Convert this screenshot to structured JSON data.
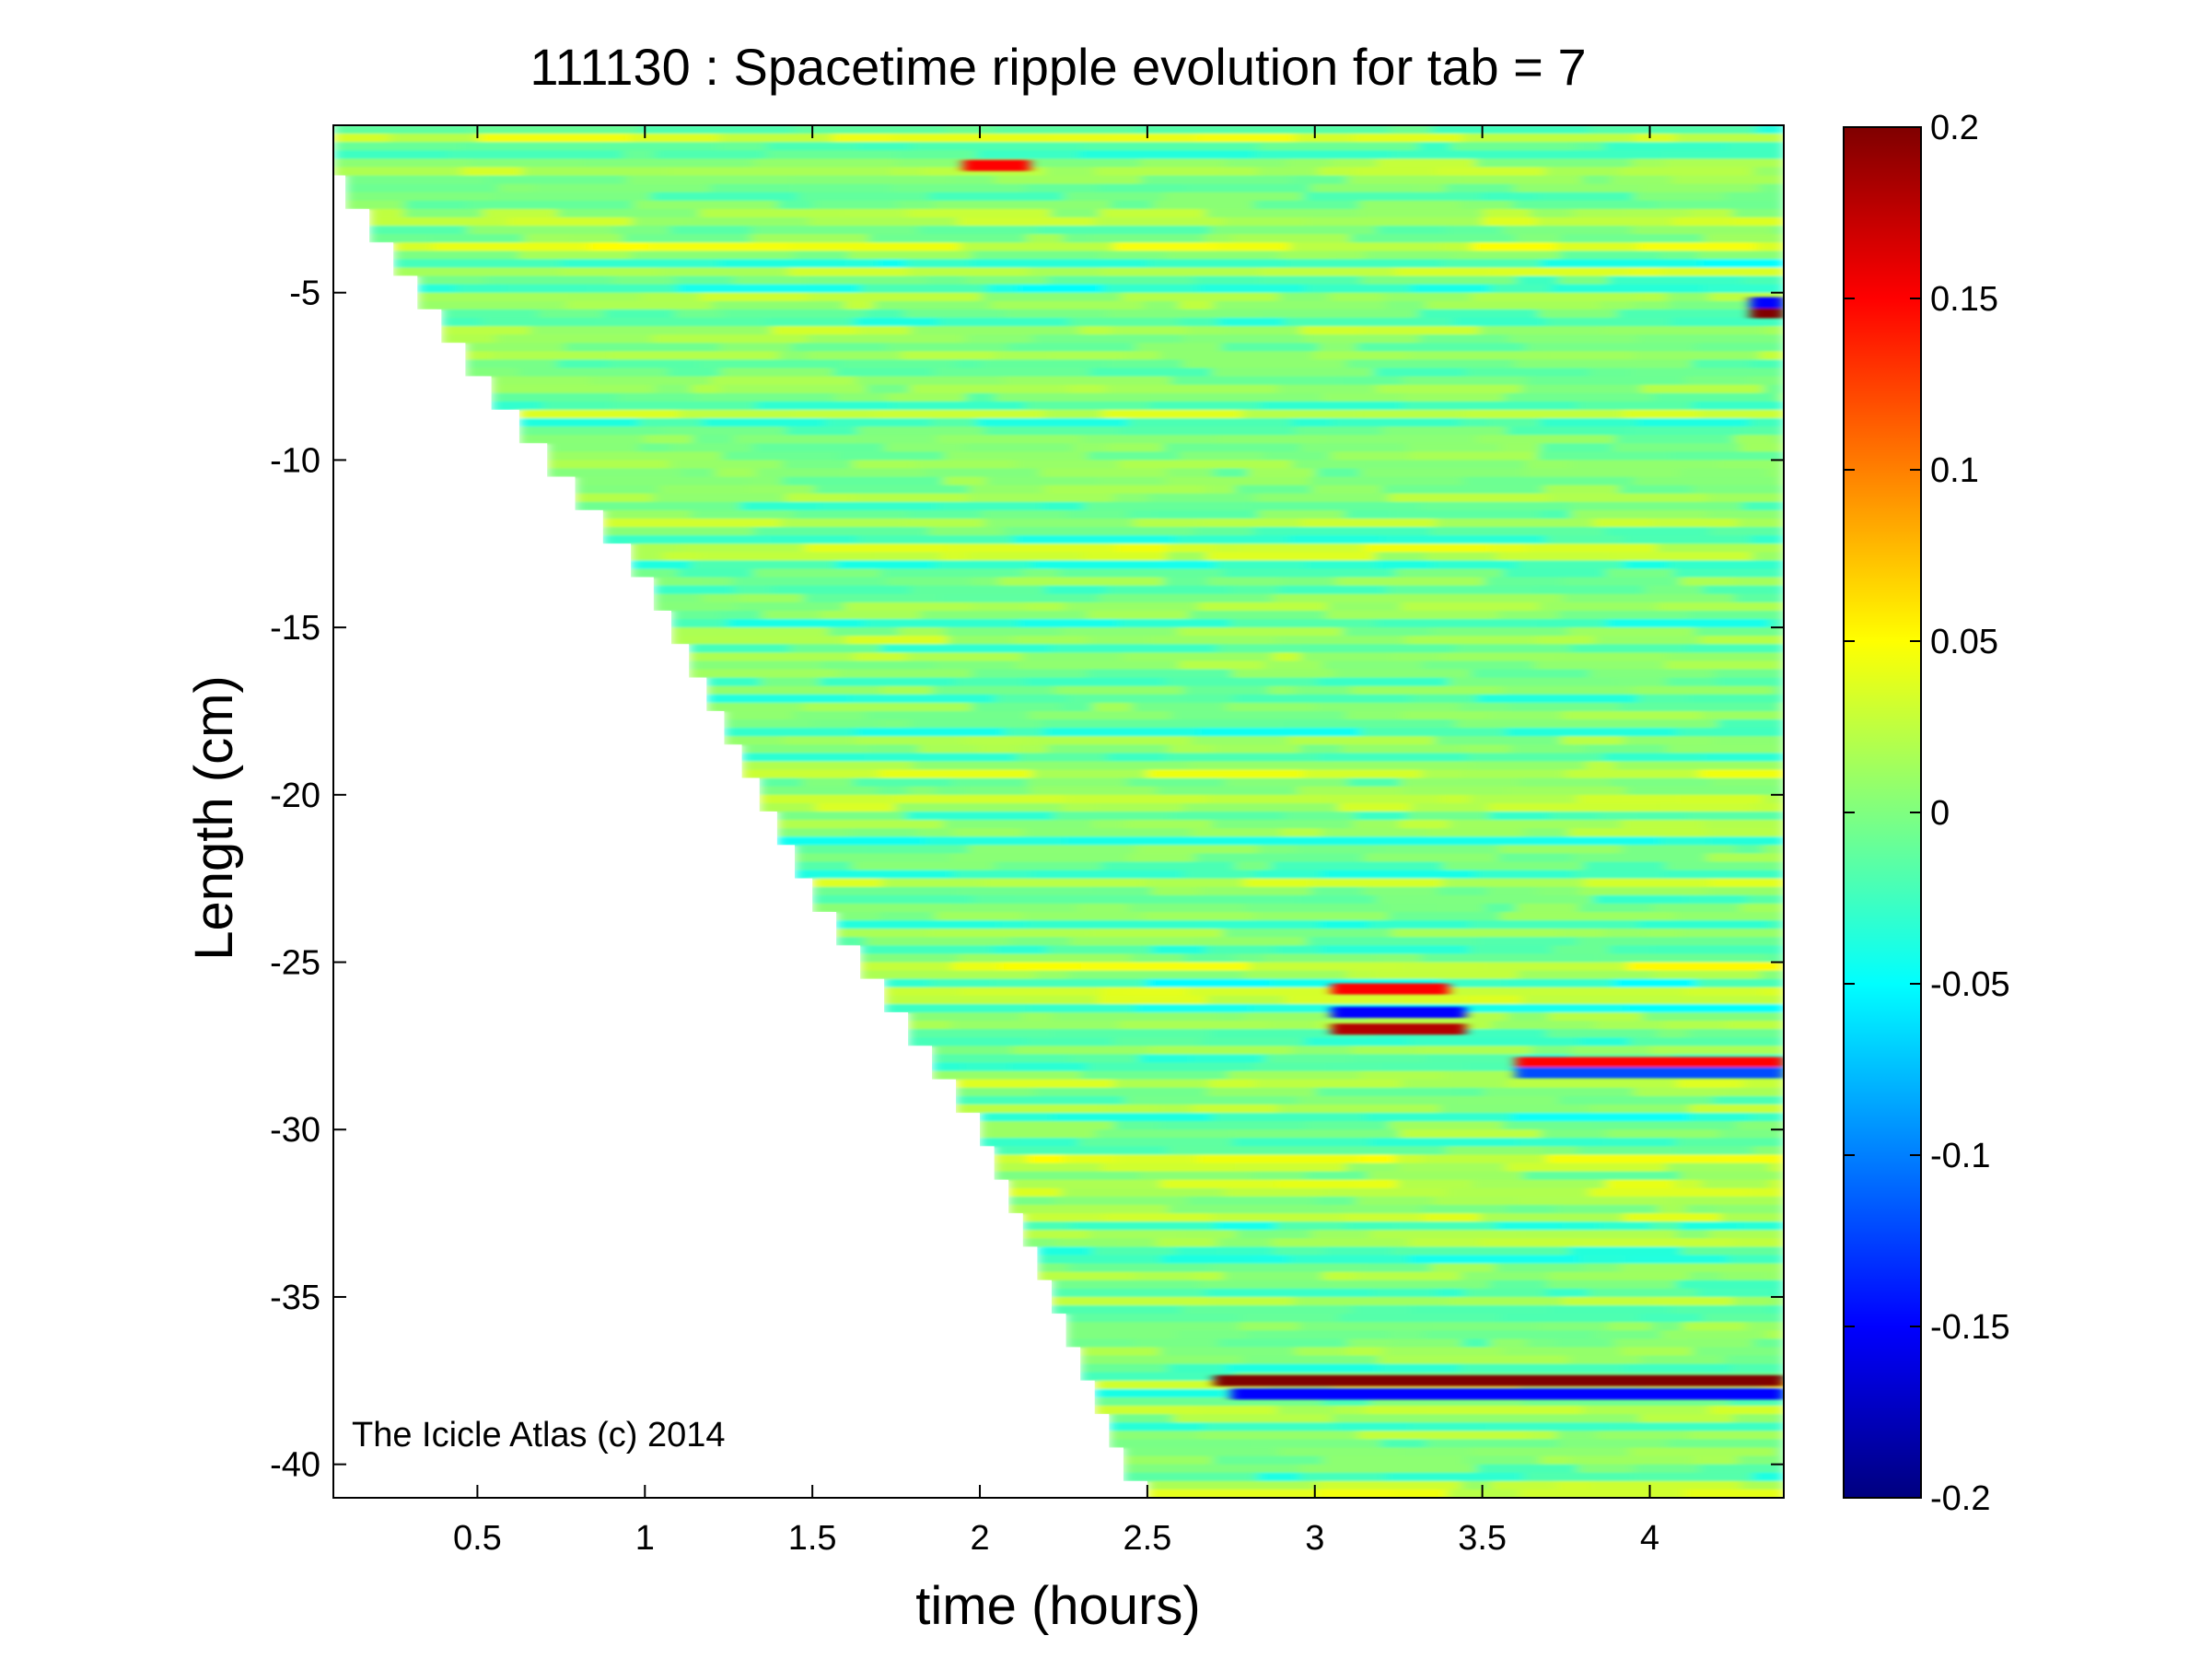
{
  "chart_data": {
    "type": "heatmap",
    "title": "111130 : Spacetime ripple evolution for tab = 7",
    "xlabel": "time (hours)",
    "ylabel": "Length (cm)",
    "xlim": [
      0.07,
      4.4
    ],
    "ylim": [
      -41,
      0
    ],
    "xticks": [
      0.5,
      1,
      1.5,
      2,
      2.5,
      3,
      3.5,
      4
    ],
    "xtick_labels": [
      "0.5",
      "1",
      "1.5",
      "2",
      "2.5",
      "3",
      "3.5",
      "4"
    ],
    "yticks": [
      -5,
      -10,
      -15,
      -20,
      -25,
      -30,
      -35,
      -40
    ],
    "ytick_labels": [
      "-5",
      "-10",
      "-15",
      "-20",
      "-25",
      "-30",
      "-35",
      "-40"
    ],
    "grid": false,
    "colormap": "jet",
    "colorbar": {
      "clim": [
        -0.2,
        0.2
      ],
      "ticks": [
        0.2,
        0.15,
        0.1,
        0.05,
        0,
        -0.05,
        -0.1,
        -0.15,
        -0.2
      ],
      "tick_labels": [
        "0.2",
        "0.15",
        "0.1",
        "0.05",
        "0",
        "-0.05",
        "-0.1",
        "-0.15",
        "-0.2"
      ]
    },
    "growth_front": {
      "description_points": [
        [
          0.07,
          -1.5
        ],
        [
          0.5,
          -7.5
        ],
        [
          1.0,
          -13.5
        ],
        [
          1.5,
          -23
        ],
        [
          2.0,
          -30
        ],
        [
          2.45,
          -40.5
        ],
        [
          2.5,
          -41
        ]
      ]
    },
    "features": [
      {
        "t": [
          2.7,
          4.4
        ],
        "length": -37.5,
        "value": 0.2
      },
      {
        "t": [
          2.75,
          4.4
        ],
        "length": -37.9,
        "value": -0.15
      },
      {
        "t": [
          3.05,
          3.45
        ],
        "length": -27.0,
        "value": 0.18
      },
      {
        "t": [
          3.05,
          3.45
        ],
        "length": -26.5,
        "value": -0.15
      },
      {
        "t": [
          3.05,
          3.4
        ],
        "length": -25.8,
        "value": 0.15
      },
      {
        "t": [
          3.6,
          4.4
        ],
        "length": -28.0,
        "value": 0.15
      },
      {
        "t": [
          3.6,
          4.4
        ],
        "length": -28.3,
        "value": -0.12
      },
      {
        "t": [
          4.3,
          4.4
        ],
        "length": -5.6,
        "value": 0.2
      },
      {
        "t": [
          4.3,
          4.4
        ],
        "length": -5.3,
        "value": -0.15
      },
      {
        "t": [
          1.95,
          2.15
        ],
        "length": -1.2,
        "value": 0.15
      }
    ],
    "annotation": "The Icicle Atlas (c) 2014"
  }
}
